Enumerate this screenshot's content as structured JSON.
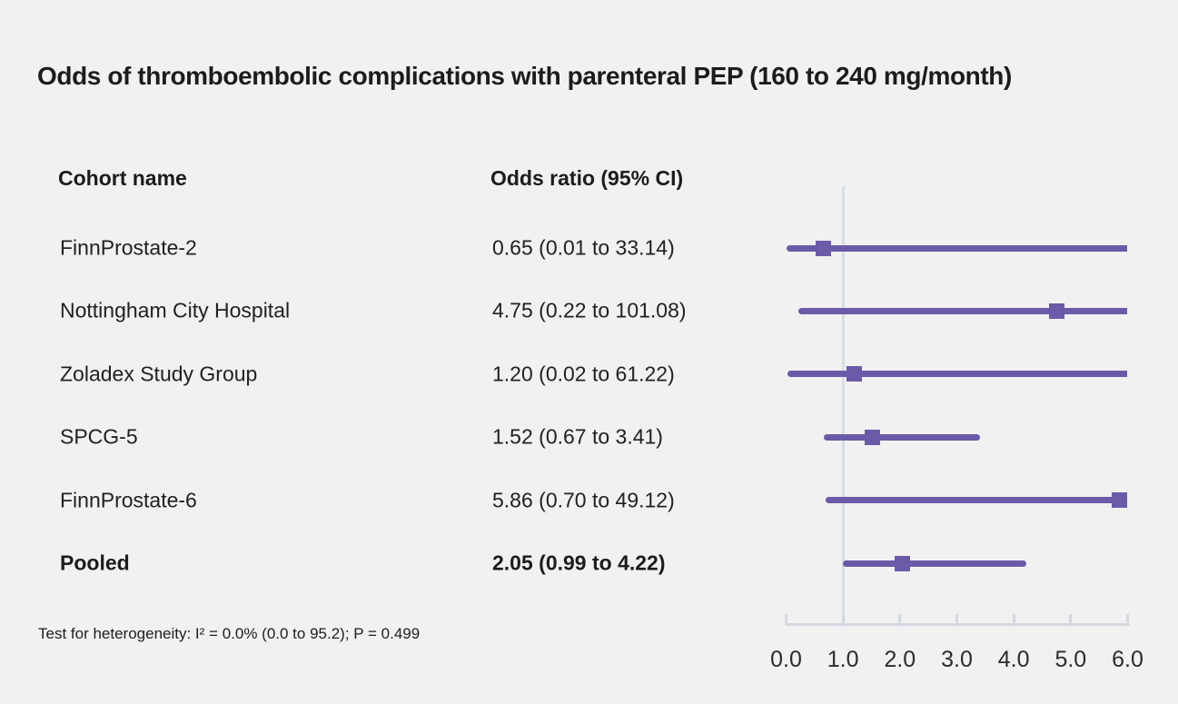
{
  "title": "Odds of thromboembolic complications with parenteral PEP (160 to 240 mg/month)",
  "columns": {
    "cohort": "Cohort name",
    "odds_ratio": "Odds ratio (95% CI)"
  },
  "footer": "Test for heterogeneity: I² = 0.0% (0.0 to 95.2); P = 0.499",
  "colors": {
    "background": "#f2f1f1",
    "bar": "#6a5aa8",
    "marker": "#6a5aa8",
    "axis": "#d4d9e0",
    "reference_line": "#d9dde4",
    "text": "#1c1c1c"
  },
  "chart_data": {
    "type": "scatter",
    "subtype": "forest-plot",
    "title": "Odds of thromboembolic complications with parenteral PEP (160 to 240 mg/month)",
    "xlabel": "",
    "ylabel": "",
    "xlim": [
      0.0,
      6.0
    ],
    "x_ticks": [
      0.0,
      1.0,
      2.0,
      3.0,
      4.0,
      5.0,
      6.0
    ],
    "x_tick_labels": [
      "0.0",
      "1.0",
      "2.0",
      "3.0",
      "4.0",
      "5.0",
      "6.0"
    ],
    "reference_line_x": 1.0,
    "grid": false,
    "legend": "none",
    "rows": [
      {
        "name": "FinnProstate-2",
        "label": "0.65 (0.01 to 33.14)",
        "or": 0.65,
        "ci_low": 0.01,
        "ci_high": 33.14,
        "bold": false
      },
      {
        "name": "Nottingham City Hospital",
        "label": "4.75 (0.22 to 101.08)",
        "or": 4.75,
        "ci_low": 0.22,
        "ci_high": 101.08,
        "bold": false
      },
      {
        "name": "Zoladex Study Group",
        "label": "1.20 (0.02 to 61.22)",
        "or": 1.2,
        "ci_low": 0.02,
        "ci_high": 61.22,
        "bold": false
      },
      {
        "name": "SPCG-5",
        "label": "1.52 (0.67 to 3.41)",
        "or": 1.52,
        "ci_low": 0.67,
        "ci_high": 3.41,
        "bold": false
      },
      {
        "name": "FinnProstate-6",
        "label": "5.86 (0.70 to 49.12)",
        "or": 5.86,
        "ci_low": 0.7,
        "ci_high": 49.12,
        "bold": false
      },
      {
        "name": "Pooled",
        "label": "2.05 (0.99 to 4.22)",
        "or": 2.05,
        "ci_low": 0.99,
        "ci_high": 4.22,
        "bold": true
      }
    ]
  }
}
